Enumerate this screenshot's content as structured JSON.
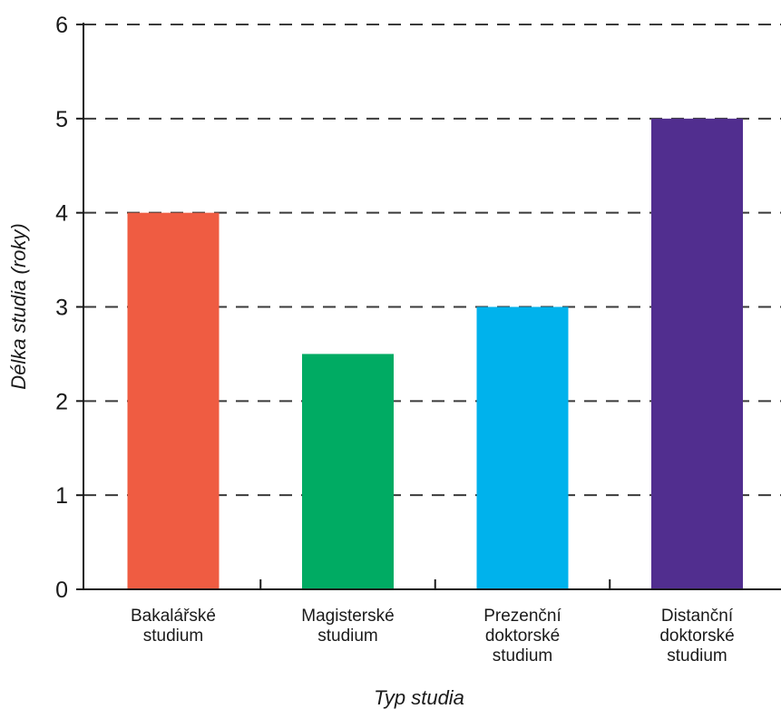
{
  "chart_data": {
    "type": "bar",
    "categories": [
      [
        "Bakalářské",
        "studium"
      ],
      [
        "Magisterské",
        "studium"
      ],
      [
        "Prezenční",
        "doktorské",
        "studium"
      ],
      [
        "Distanční",
        "doktorské",
        "studium"
      ]
    ],
    "values": [
      4,
      2.5,
      3,
      5
    ],
    "colors": [
      "#ef5c42",
      "#00ab63",
      "#00b2ec",
      "#512e8f"
    ],
    "xlabel": "Typ studia",
    "ylabel": "Délka studia (roky)",
    "ylim": [
      0,
      6
    ],
    "yticks": [
      "0",
      "1",
      "2",
      "3",
      "4",
      "5",
      "6"
    ],
    "grid": "horizontal dashed",
    "legend": "none"
  }
}
